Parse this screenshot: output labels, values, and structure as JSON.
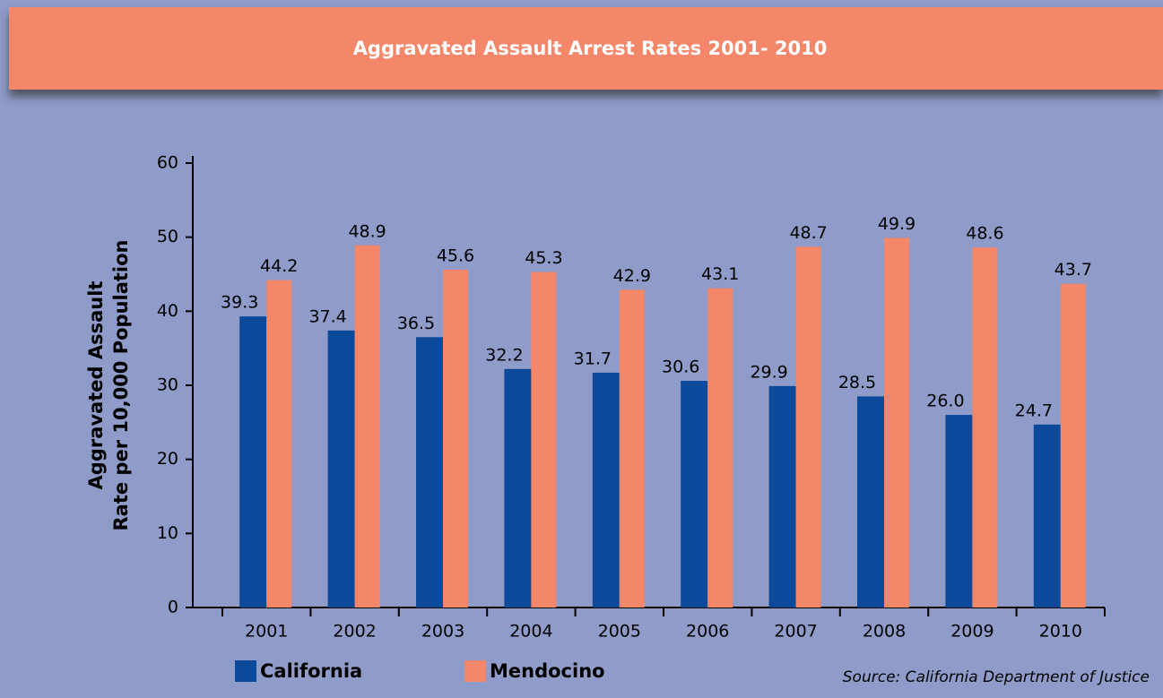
{
  "chart_data": {
    "type": "bar",
    "title": "Aggravated Assault Arrest Rates  2001- 2010",
    "ylabel": [
      "Aggravated Assault",
      "Rate per 10,000 Population"
    ],
    "source": "Source: California Department of Justice",
    "categories": [
      "2001",
      "2002",
      "2003",
      "2004",
      "2005",
      "2006",
      "2007",
      "2008",
      "2009",
      "2010"
    ],
    "series": [
      {
        "name": "California",
        "color": "#0b4a9b",
        "values": [
          39.3,
          37.4,
          36.5,
          32.2,
          31.7,
          30.6,
          29.9,
          28.5,
          26.0,
          24.7
        ],
        "value_labels": [
          "39.3",
          "37.4",
          "36.5",
          "32.2",
          "31.7",
          "30.6",
          "29.9",
          "28.5",
          "26.0",
          "24.7"
        ]
      },
      {
        "name": "Mendocino",
        "color": "#f4876a",
        "values": [
          44.2,
          48.9,
          45.6,
          45.3,
          42.9,
          43.1,
          48.7,
          49.9,
          48.6,
          43.7
        ],
        "value_labels": [
          "44.2",
          "48.9",
          "45.6",
          "45.3",
          "42.9",
          "43.1",
          "48.7",
          "49.9",
          "48.6",
          "43.7"
        ]
      }
    ],
    "ylim": [
      0,
      60
    ],
    "yticks": [
      0,
      10,
      20,
      30,
      40,
      50,
      60
    ]
  }
}
